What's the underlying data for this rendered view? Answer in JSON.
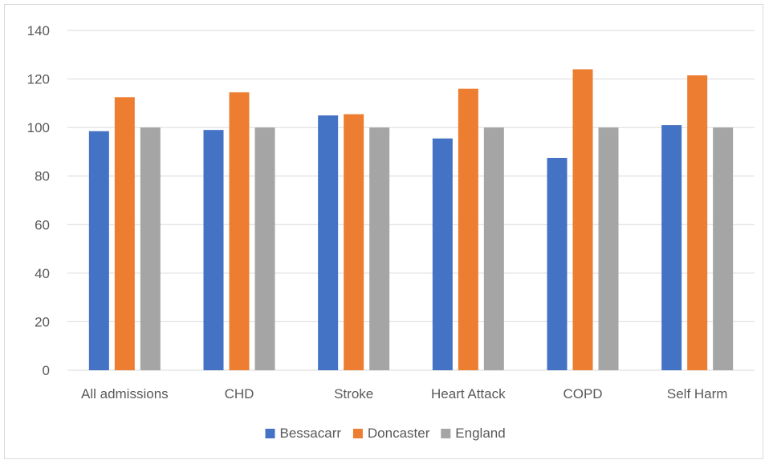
{
  "chart_data": {
    "type": "bar",
    "title": "",
    "xlabel": "",
    "ylabel": "",
    "categories": [
      "All admissions",
      "CHD",
      "Stroke",
      "Heart Attack",
      "COPD",
      "Self Harm"
    ],
    "series": [
      {
        "name": "Bessacarr",
        "color": "#4472c4",
        "values": [
          98.5,
          99,
          105,
          95.5,
          87.5,
          101
        ]
      },
      {
        "name": "Doncaster",
        "color": "#ed7d31",
        "values": [
          112.5,
          114.5,
          105.5,
          116,
          124,
          121.5
        ]
      },
      {
        "name": "England",
        "color": "#a5a5a5",
        "values": [
          100,
          100,
          100,
          100,
          100,
          100
        ]
      }
    ],
    "ylim": [
      0,
      140
    ],
    "yticks": [
      0,
      20,
      40,
      60,
      80,
      100,
      120,
      140
    ],
    "grid": true,
    "legend": "bottom"
  }
}
